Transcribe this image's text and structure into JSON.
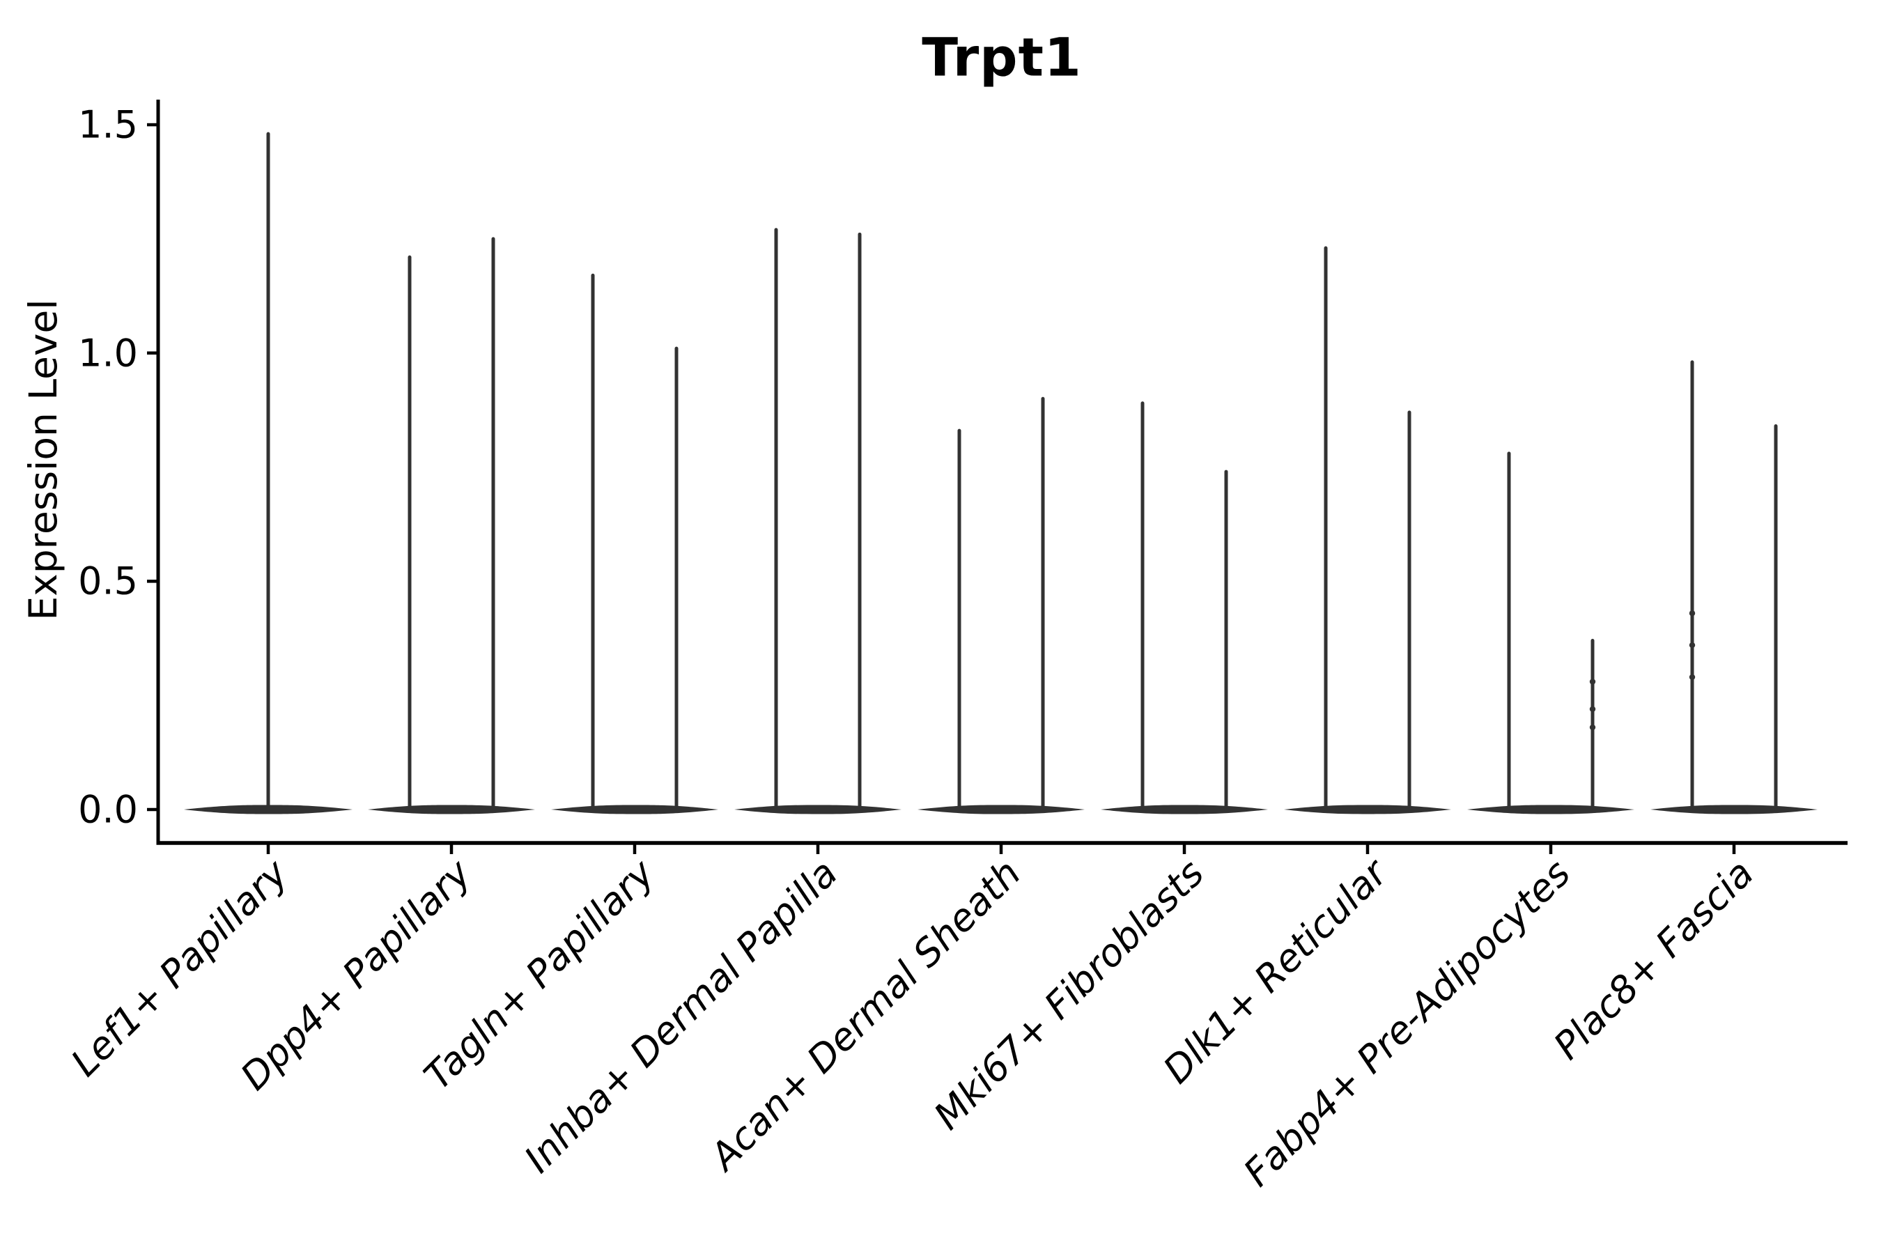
{
  "figure": {
    "title": "Trpt1",
    "ylabel": "Expression Level"
  },
  "chart_data": {
    "type": "violin",
    "title": "Trpt1",
    "xlabel": "",
    "ylabel": "Expression Level",
    "ylim": [
      0,
      1.55
    ],
    "ytick_values": [
      0.0,
      0.5,
      1.0,
      1.5
    ],
    "ytick_labels": [
      "0.0",
      "0.5",
      "1.0",
      "1.5"
    ],
    "grid": false,
    "legend": "none",
    "layout_hint": "9 categories on x-axis; most categories contain two adjacent narrow violins (split groups) sharing a flat density lens at expression 0; only left and bottom axis spines drawn; x tick labels rotated 45deg italic",
    "categories": [
      "Lef1+ Papillary",
      "Dpp4+ Papillary",
      "Tagln+ Papillary",
      "Inhba+ Dermal Papilla",
      "Acan+ Dermal Sheath",
      "Mki67+ Fibroblasts",
      "Dlk1+ Reticular",
      "Fabp4+ Pre-Adipocytes",
      "Plac8+ Fascia"
    ],
    "violins": [
      {
        "category": "Lef1+ Papillary",
        "groups": [
          {
            "position": "center",
            "max": 1.48
          }
        ]
      },
      {
        "category": "Dpp4+ Papillary",
        "groups": [
          {
            "position": "left",
            "max": 1.21
          },
          {
            "position": "right",
            "max": 1.25
          }
        ]
      },
      {
        "category": "Tagln+ Papillary",
        "groups": [
          {
            "position": "left",
            "max": 1.17
          },
          {
            "position": "right",
            "max": 1.01
          }
        ]
      },
      {
        "category": "Inhba+ Dermal Papilla",
        "groups": [
          {
            "position": "left",
            "max": 1.27
          },
          {
            "position": "right",
            "max": 1.26
          }
        ]
      },
      {
        "category": "Acan+ Dermal Sheath",
        "groups": [
          {
            "position": "left",
            "max": 0.83
          },
          {
            "position": "right",
            "max": 0.9
          }
        ]
      },
      {
        "category": "Mki67+ Fibroblasts",
        "groups": [
          {
            "position": "left",
            "max": 0.89
          },
          {
            "position": "right",
            "max": 0.74
          }
        ]
      },
      {
        "category": "Dlk1+ Reticular",
        "groups": [
          {
            "position": "left",
            "max": 1.23
          },
          {
            "position": "right",
            "max": 0.87
          }
        ]
      },
      {
        "category": "Fabp4+ Pre-Adipocytes",
        "groups": [
          {
            "position": "left",
            "max": 0.78
          },
          {
            "position": "right",
            "max": 0.37,
            "points": [
              0.28,
              0.22,
              0.18
            ]
          }
        ]
      },
      {
        "category": "Plac8+ Fascia",
        "groups": [
          {
            "position": "left",
            "max": 0.98,
            "points": [
              0.43,
              0.36,
              0.29
            ]
          },
          {
            "position": "right",
            "max": 0.84
          }
        ]
      }
    ],
    "colors": {
      "violin": "#323232",
      "axis": "#000000",
      "text": "#000000",
      "background": "#ffffff"
    }
  }
}
